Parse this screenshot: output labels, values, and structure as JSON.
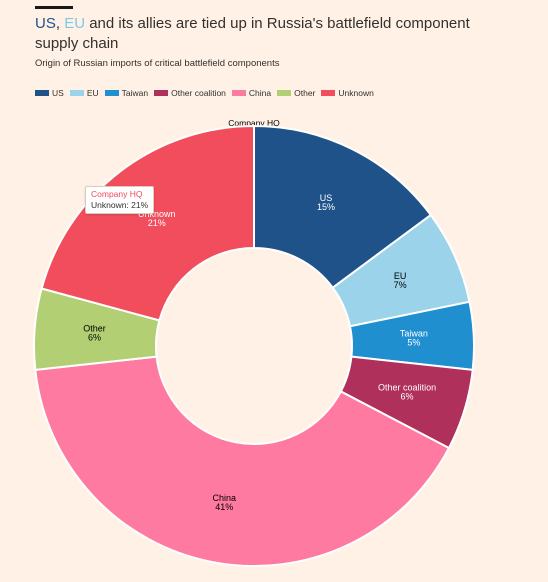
{
  "header": {
    "title_us": "US",
    "title_sep": ", ",
    "title_eu": "EU",
    "title_rest": " and its allies are tied up in Russia's battlefield component supply chain",
    "subtitle": "Origin of Russian imports of critical battlefield components"
  },
  "tooltip": {
    "title": "Company HQ",
    "line": "Unknown: 21%"
  },
  "colors": {
    "background": "#fff1e5",
    "us": "#1f5289",
    "eu": "#9ad3ea",
    "taiwan": "#1f8fd0",
    "other_coalition": "#b0305c",
    "china": "#ff7aa0",
    "other": "#b3cf74",
    "unknown": "#f24d5c"
  },
  "chart_data": {
    "type": "pie",
    "donut": true,
    "title": "Company HQ",
    "legend_position": "top-left",
    "series": [
      {
        "name": "US",
        "value": 15,
        "label": "15%",
        "color": "#1f5289",
        "text_color": "#ffffff"
      },
      {
        "name": "EU",
        "value": 7,
        "label": "7%",
        "color": "#9ad3ea",
        "text_color": "#000000"
      },
      {
        "name": "Taiwan",
        "value": 5,
        "label": "5%",
        "color": "#1f8fd0",
        "text_color": "#ffffff"
      },
      {
        "name": "Other coalition",
        "value": 6,
        "label": "6%",
        "color": "#b0305c",
        "text_color": "#ffffff"
      },
      {
        "name": "China",
        "value": 41,
        "label": "41%",
        "color": "#ff7aa0",
        "text_color": "#000000"
      },
      {
        "name": "Other",
        "value": 6,
        "label": "6%",
        "color": "#b3cf74",
        "text_color": "#000000"
      },
      {
        "name": "Unknown",
        "value": 21,
        "label": "21%",
        "color": "#f24d5c",
        "text_color": "#ffffff"
      }
    ]
  }
}
